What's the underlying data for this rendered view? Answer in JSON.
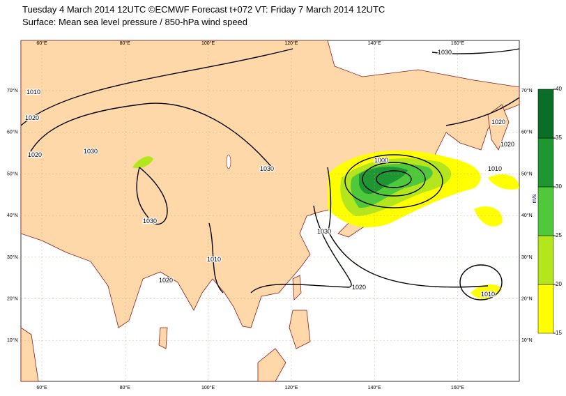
{
  "header": {
    "title": "Tuesday 4 March 2014 12UTC ©ECMWF Forecast t+072 VT: Friday 7 March 2014 12UTC",
    "subtitle": "Surface: Mean sea level pressure / 850-hPa wind speed"
  },
  "map": {
    "lon_labels": [
      "60°E",
      "80°E",
      "100°E",
      "120°E",
      "140°E",
      "160°E"
    ],
    "lat_labels": [
      "70°N",
      "60°N",
      "50°N",
      "40°N",
      "30°N",
      "20°N",
      "10°N"
    ],
    "isobar_labels": [
      "1010",
      "1020",
      "1020",
      "1030",
      "1020",
      "1030",
      "1000",
      "1010",
      "1030",
      "1030",
      "1020",
      "1020",
      "1010",
      "1020",
      "1030",
      "1010"
    ]
  },
  "colorbar": {
    "unit": "m/s",
    "ticks": [
      15,
      20,
      25,
      30,
      35,
      40
    ],
    "colors": [
      "#ffff00",
      "#b4e61e",
      "#50c83c",
      "#1e9632",
      "#0a6e28"
    ]
  }
}
